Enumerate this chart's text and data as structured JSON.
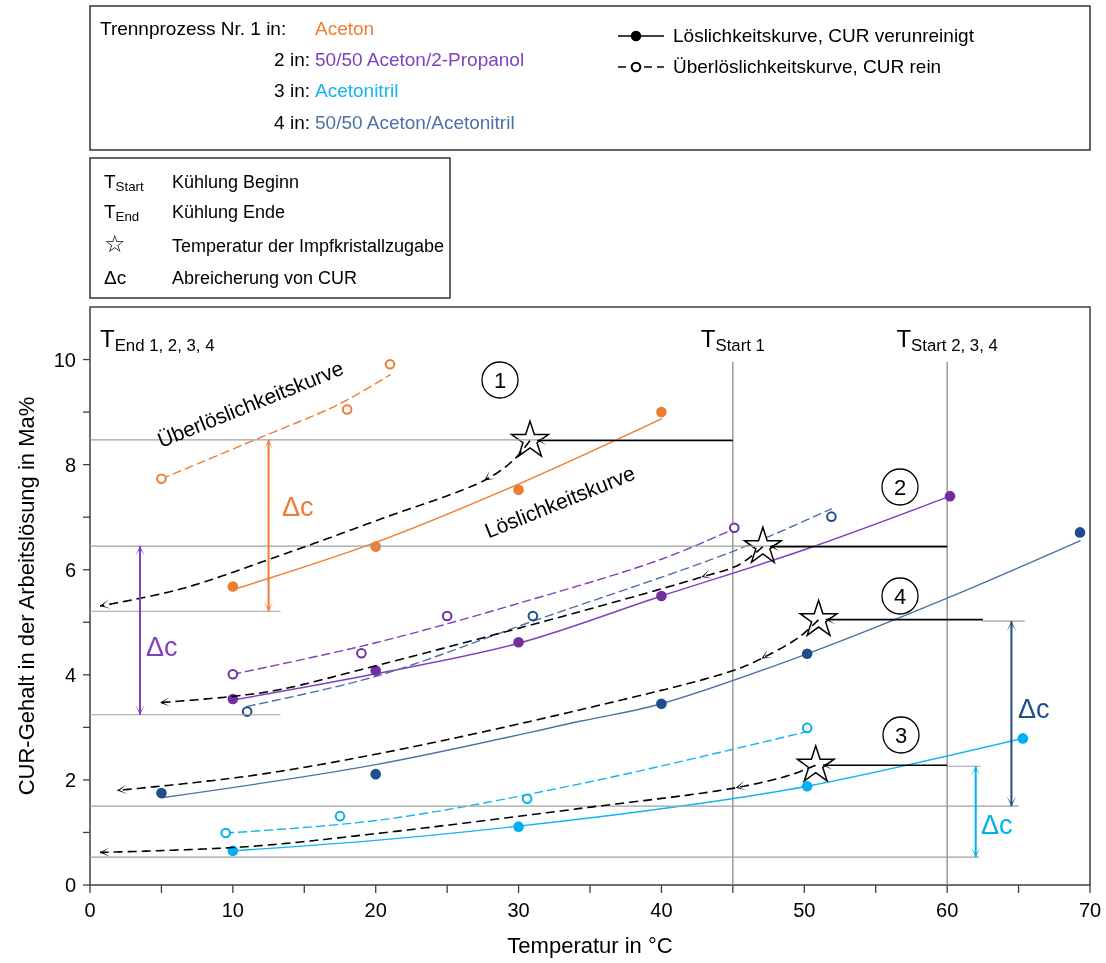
{
  "chart_data": {
    "type": "line",
    "xlabel": "Temperatur in °C",
    "ylabel": "CUR-Gehalt in der Arbeitslösung in Ma%",
    "xlim": [
      0,
      70
    ],
    "ylim": [
      0,
      11
    ],
    "xticks": [
      0,
      {
        "value": 5,
        "label": null
      },
      10,
      {
        "value": 15,
        "label": null
      },
      20,
      {
        "value": 25,
        "label": null
      },
      30,
      {
        "value": 35,
        "label": null
      },
      40,
      {
        "value": 45,
        "label": null
      },
      50,
      {
        "value": 55,
        "label": null
      },
      60,
      {
        "value": 65,
        "label": null
      },
      70
    ],
    "yticks": [
      0,
      {
        "value": 1,
        "label": null
      },
      2,
      {
        "value": 3,
        "label": null
      },
      4,
      {
        "value": 5,
        "label": null
      },
      6,
      {
        "value": 7,
        "label": null
      },
      8,
      {
        "value": 9,
        "label": null
      },
      10
    ],
    "grid": false,
    "marker": "none",
    "series": [
      {
        "color": "#ed7d31",
        "line_style": "solid",
        "x": [
          10,
          20,
          30,
          40
        ],
        "values": [
          5.62,
          6.52,
          7.63,
          8.87
        ]
      },
      {
        "color": "#7f3fbf",
        "line_style": "solid",
        "x": [
          10,
          20,
          30,
          40,
          50,
          60.2
        ],
        "values": [
          3.52,
          4.02,
          4.6,
          5.5,
          6.38,
          7.4
        ]
      },
      {
        "color": "#14b4ef",
        "line_style": "solid",
        "x": [
          10,
          20,
          30,
          40,
          50.2,
          65.3
        ],
        "values": [
          0.65,
          0.85,
          1.12,
          1.45,
          1.88,
          2.79
        ]
      },
      {
        "color": "#4a72aa",
        "line_style": "solid",
        "x": [
          5,
          20,
          34.4,
          40,
          50.2,
          60,
          69.3
        ],
        "values": [
          1.66,
          2.29,
          3.12,
          3.45,
          4.4,
          5.46,
          6.55
        ]
      },
      {
        "color": "#ed7d31",
        "line_style": "dashed",
        "x": [
          5,
          11.7,
          17.5,
          21
        ],
        "values": [
          7.73,
          8.49,
          9.16,
          9.71
        ]
      },
      {
        "color": "#7f3fbf",
        "line_style": "dashed",
        "x": [
          10,
          20,
          30,
          40,
          45.1
        ],
        "values": [
          4.01,
          4.61,
          5.36,
          6.2,
          6.78
        ]
      },
      {
        "color": "#14b4ef",
        "line_style": "dashed",
        "x": [
          9.5,
          20.4,
          34.4,
          50.2
        ],
        "values": [
          0.99,
          1.24,
          1.93,
          2.92
        ]
      },
      {
        "color": "#4a72aa",
        "line_style": "dashed",
        "x": [
          11,
          20,
          31,
          45.1,
          51.9
        ],
        "values": [
          3.4,
          3.97,
          5.02,
          6.36,
          7.16
        ]
      },
      {
        "type": "scatter",
        "color": "#000000",
        "marker": "circle",
        "line_style": "solid",
        "x": [
          10,
          20,
          30,
          40,
          10,
          20,
          30,
          40,
          60.2,
          10,
          30,
          50.2,
          65.3,
          5,
          20,
          40,
          50.2,
          69.3
        ],
        "values": [
          5.68,
          6.44,
          7.52,
          9.0,
          3.54,
          4.08,
          4.62,
          5.5,
          7.4,
          0.65,
          1.11,
          1.88,
          2.79,
          1.75,
          2.11,
          3.45,
          4.4,
          6.71
        ],
        "colors": [
          "#ed7d31",
          "#ed7d31",
          "#ed7d31",
          "#ed7d31",
          "#7030a0",
          "#7030a0",
          "#7030a0",
          "#7030a0",
          "#7030a0",
          "#00b0f0",
          "#00b0f0",
          "#00b0f0",
          "#00b0f0",
          "#1f4e8c",
          "#1f4e8c",
          "#1f4e8c",
          "#1f4e8c",
          "#1f4e8c"
        ]
      },
      {
        "type": "scatter",
        "color": "#000000",
        "marker": "circle",
        "line_style": "dashed",
        "x": [
          5,
          18,
          21,
          10,
          19,
          25,
          45.1,
          9.5,
          17.5,
          30.6,
          50.2,
          11,
          31,
          51.9
        ],
        "values": [
          7.73,
          9.05,
          9.91,
          4.01,
          4.41,
          5.12,
          6.8,
          0.99,
          1.31,
          1.64,
          2.99,
          3.3,
          5.12,
          7.01
        ],
        "colors": [
          "#ed7d31",
          "#ed7d31",
          "#ed7d31",
          "#7030a0",
          "#7030a0",
          "#7030a0",
          "#7030a0",
          "#00b0f0",
          "#00b0f0",
          "#00b0f0",
          "#00b0f0",
          "#1f4e8c",
          "#1f4e8c",
          "#1f4e8c"
        ]
      },
      {
        "type": "scatter",
        "color": "#000000",
        "marker": "star",
        "x": [
          30.8,
          47.1,
          51,
          50.8
        ],
        "values": [
          8.46,
          6.44,
          5.05,
          2.28
        ]
      },
      {
        "color": "#a0a0a0",
        "line_style": "solid",
        "x": [
          0,
          45
        ],
        "values": [
          8.47,
          8.47
        ]
      },
      {
        "color": "#a0a0a0",
        "line_style": "solid",
        "x": [
          0,
          60
        ],
        "values": [
          6.45,
          6.45
        ]
      },
      {
        "color": "#a0a0a0",
        "line_style": "solid",
        "x": [
          0,
          13.3
        ],
        "values": [
          5.21,
          5.21
        ]
      },
      {
        "color": "#a0a0a0",
        "line_style": "solid",
        "x": [
          0,
          13.3
        ],
        "values": [
          3.24,
          3.24
        ]
      },
      {
        "color": "#a0a0a0",
        "line_style": "solid",
        "x": [
          0,
          65
        ],
        "values": [
          1.5,
          1.5
        ]
      },
      {
        "color": "#a0a0a0",
        "line_style": "solid",
        "x": [
          0,
          62.2
        ],
        "values": [
          0.53,
          0.53
        ]
      },
      {
        "color": "#a0a0a0",
        "line_style": "solid",
        "x": [
          62.5,
          65.4
        ],
        "values": [
          5.02,
          5.02
        ]
      },
      {
        "color": "#a0a0a0",
        "line_style": "solid",
        "x": [
          60,
          62.3
        ],
        "values": [
          2.26,
          2.26
        ]
      }
    ],
    "ref_lines": [
      {
        "axis": "x",
        "value": 45,
        "label": "T$_{Start 1}$",
        "color": "#808080"
      },
      {
        "axis": "x",
        "value": 60,
        "label": "T$_{Start 2, 3, 4}$",
        "color": "#808080"
      }
    ],
    "annotations": [
      "Trennprozess  Nr. 1 in:",
      "Aceton",
      "2 in:",
      "50/50 Aceton/2-Propanol",
      "3 in:",
      "Acetonitril",
      "4 in:",
      "50/50 Aceton/Acetonitril",
      "T$_{Start}$",
      "Kühlung Beginn",
      "T$_{End}$",
      "Kühlung Ende",
      "☆",
      "Temperatur der Impfkristallzugabe",
      "Δc",
      "Abreicherung von CUR",
      "1",
      "2",
      "4",
      "3",
      "Δc",
      "Δc",
      "Δc",
      "Δc",
      {
        "text": "Überlöslichkeitskurve",
        "x": 11.7,
        "y": 8.49
      },
      {
        "text": "Löslichkeitskurve",
        "x": 33.5,
        "y": 8.0
      },
      "T$_{End 1, 2, 3, 4}$",
      "Löslichkeitskurve, CUR verunreinigt",
      "Überlöslichkeitskurve, CUR rein"
    ]
  }
}
